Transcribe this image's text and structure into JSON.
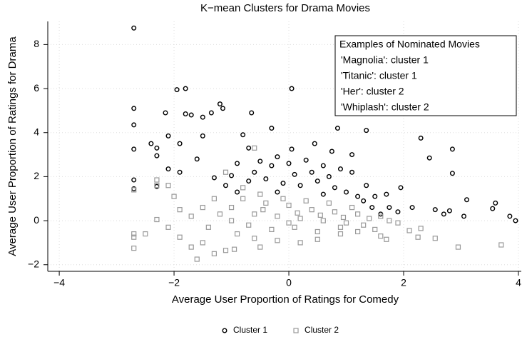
{
  "chart_data": {
    "type": "scatter",
    "title": "K−mean Clusters for Drama Movies",
    "x_label": "Average User Proportion of Ratings for Comedy",
    "y_label": "Average User Proportion of Ratings for Drama",
    "xlim": [
      -4.2,
      4.05
    ],
    "ylim": [
      -2.3,
      9.05
    ],
    "xticks": [
      {
        "value": -4,
        "label": "−4"
      },
      {
        "value": -2,
        "label": "−2"
      },
      0,
      2,
      4
    ],
    "yticks": [
      {
        "value": -2,
        "label": "−2"
      },
      0,
      2,
      4,
      6,
      8
    ],
    "grid": true,
    "legend": "bottom",
    "annotation": {
      "title": "Examples of Nominated Movies",
      "lines": [
        "'Magnolia': cluster 1",
        "'Titanic': cluster 1",
        "'Her': cluster 2",
        "'Whiplash': cluster 2"
      ]
    },
    "series": [
      {
        "name": "Cluster 1",
        "color": "#000000",
        "marker": "circle",
        "x": [
          -2.7,
          -2.7,
          -2.7,
          -2.7,
          -2.7,
          -2.7,
          -1.95,
          -1.8,
          -2.15,
          -2.1,
          -2.3,
          -2.4,
          -2.3,
          -1.8,
          -1.7,
          -1.5,
          -1.35,
          -1.2,
          -1.15,
          -0.8,
          -0.65,
          -0.3,
          -0.2,
          -0.7,
          -1.5,
          -1.9,
          -1.6,
          -2.1,
          -1.9,
          -2.3,
          0.05,
          0.05,
          0.85,
          0.85,
          1.35,
          1.0,
          0.45,
          0.75,
          1.1,
          1.95,
          2.3,
          2.85,
          2.85,
          2.8,
          2.55,
          2.7,
          2.15,
          3.1,
          3.05,
          3.55,
          3.6,
          3.85,
          3.95,
          2.45,
          1.7,
          1.75,
          -1.3,
          -1.0,
          -0.9,
          -0.5,
          -0.3,
          0.0,
          0.3,
          0.6,
          0.9,
          1.1,
          1.35,
          1.5,
          -0.7,
          -0.4,
          -0.1,
          0.2,
          0.5,
          0.8,
          1.0,
          1.2,
          -0.6,
          0.1,
          0.4,
          0.7,
          1.3,
          1.45,
          -0.9,
          -0.2,
          0.6,
          1.6,
          -1.1,
          1.9
        ],
        "y": [
          8.75,
          5.1,
          4.35,
          3.25,
          1.85,
          1.45,
          5.95,
          6.0,
          4.9,
          3.85,
          3.3,
          3.5,
          2.95,
          4.85,
          4.8,
          4.7,
          4.9,
          5.3,
          5.1,
          3.9,
          4.9,
          4.2,
          2.9,
          3.3,
          3.85,
          3.5,
          2.8,
          2.35,
          2.2,
          1.55,
          6.0,
          3.25,
          5.6,
          4.2,
          4.1,
          5.1,
          3.5,
          3.15,
          3.0,
          1.5,
          3.75,
          3.25,
          2.15,
          0.45,
          0.5,
          0.3,
          0.6,
          0.95,
          0.2,
          0.55,
          0.8,
          0.2,
          0.0,
          2.85,
          1.2,
          0.6,
          1.95,
          2.05,
          2.6,
          2.7,
          2.5,
          2.6,
          2.75,
          2.5,
          2.35,
          2.2,
          1.6,
          1.1,
          1.8,
          1.9,
          1.7,
          1.6,
          1.8,
          1.5,
          1.3,
          1.1,
          2.2,
          2.1,
          2.2,
          2.0,
          0.9,
          0.6,
          1.3,
          1.3,
          1.2,
          0.3,
          1.6,
          0.4
        ]
      },
      {
        "name": "Cluster 2",
        "color": "#999999",
        "marker": "square",
        "x": [
          -2.7,
          -2.7,
          -2.7,
          -2.7,
          -2.5,
          -2.3,
          -2.3,
          -2.1,
          -2.0,
          -2.3,
          -2.1,
          -1.9,
          -1.7,
          -1.6,
          -1.5,
          -1.3,
          -1.1,
          -0.95,
          -0.5,
          -1.5,
          -1.3,
          -1.7,
          -1.9,
          -0.9,
          -0.6,
          -0.2,
          0.2,
          0.5,
          0.9,
          1.2,
          1.6,
          1.7,
          2.1,
          2.25,
          2.55,
          2.95,
          3.7,
          2.3,
          1.9,
          -1.2,
          -1.0,
          -0.8,
          -0.6,
          -0.4,
          -0.2,
          0.0,
          0.2,
          0.4,
          0.6,
          0.8,
          1.0,
          1.2,
          1.4,
          1.6,
          -0.7,
          -0.3,
          0.1,
          0.5,
          0.9,
          1.3,
          -0.8,
          -0.5,
          -0.1,
          0.3,
          0.7,
          1.1,
          -0.6,
          -1.1,
          -1.0,
          0.0,
          -0.45,
          0.15,
          0.55,
          0.95,
          1.5,
          1.75,
          -1.4
        ],
        "y": [
          1.4,
          -0.6,
          -0.75,
          -1.25,
          -0.6,
          1.6,
          1.85,
          1.6,
          1.1,
          0.05,
          -0.3,
          -0.75,
          -1.2,
          -1.75,
          -1.0,
          -1.5,
          -1.35,
          -1.3,
          -1.2,
          0.6,
          1.0,
          0.2,
          0.5,
          -0.6,
          -0.8,
          -0.9,
          -1.0,
          -0.85,
          -0.6,
          -0.5,
          -0.7,
          -0.85,
          -0.45,
          -0.75,
          -0.8,
          -1.2,
          -1.1,
          -0.35,
          -0.1,
          0.3,
          0.6,
          1.0,
          0.3,
          0.8,
          0.2,
          0.7,
          0.1,
          0.5,
          0.0,
          0.4,
          -0.1,
          0.3,
          0.1,
          0.2,
          -0.2,
          -0.4,
          -0.3,
          -0.5,
          -0.3,
          -0.2,
          1.5,
          1.2,
          1.0,
          0.9,
          0.8,
          0.6,
          3.3,
          2.2,
          0.0,
          -0.1,
          0.5,
          0.35,
          0.25,
          0.15,
          -0.4,
          0.0,
          -0.3
        ]
      }
    ]
  }
}
